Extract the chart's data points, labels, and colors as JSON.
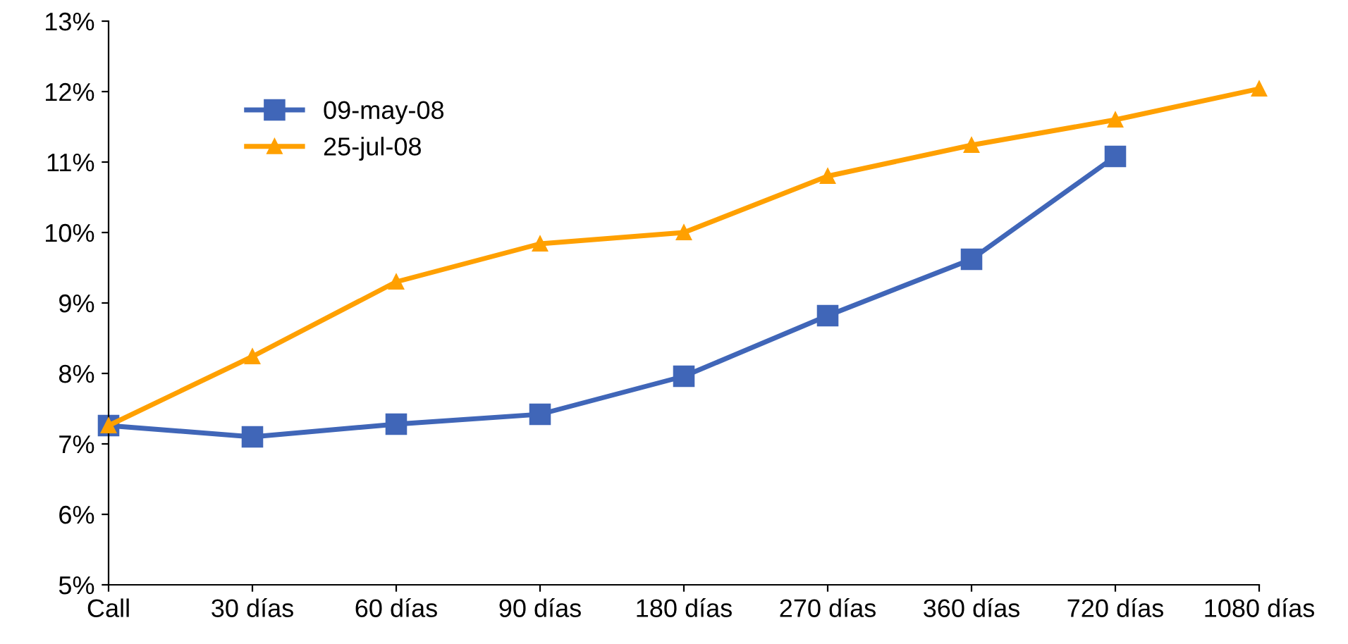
{
  "chart_data": {
    "type": "line",
    "categories": [
      "Call",
      "30 días",
      "60 días",
      "90 días",
      "180 días",
      "270 días",
      "360 días",
      "720 días",
      "1080 días"
    ],
    "series": [
      {
        "name": "09-may-08",
        "color": "#4066b8",
        "marker": "square",
        "values": [
          7.26,
          7.1,
          7.28,
          7.42,
          7.96,
          8.82,
          9.62,
          11.08,
          null
        ]
      },
      {
        "name": "25-jul-08",
        "color": "#ffa000",
        "marker": "triangle",
        "values": [
          7.26,
          8.24,
          9.3,
          9.84,
          10.0,
          10.8,
          11.24,
          11.6,
          12.04
        ]
      }
    ],
    "ylim": [
      5,
      13
    ],
    "yticks": [
      {
        "value": 5,
        "label": "5%"
      },
      {
        "value": 6,
        "label": "6%"
      },
      {
        "value": 7,
        "label": "7%"
      },
      {
        "value": 8,
        "label": "8%"
      },
      {
        "value": 9,
        "label": "9%"
      },
      {
        "value": 10,
        "label": "10%"
      },
      {
        "value": 11,
        "label": "11%"
      },
      {
        "value": 12,
        "label": "12%"
      },
      {
        "value": 13,
        "label": "13%"
      }
    ],
    "grid": false,
    "legend": "top left",
    "line_style": "solid"
  }
}
